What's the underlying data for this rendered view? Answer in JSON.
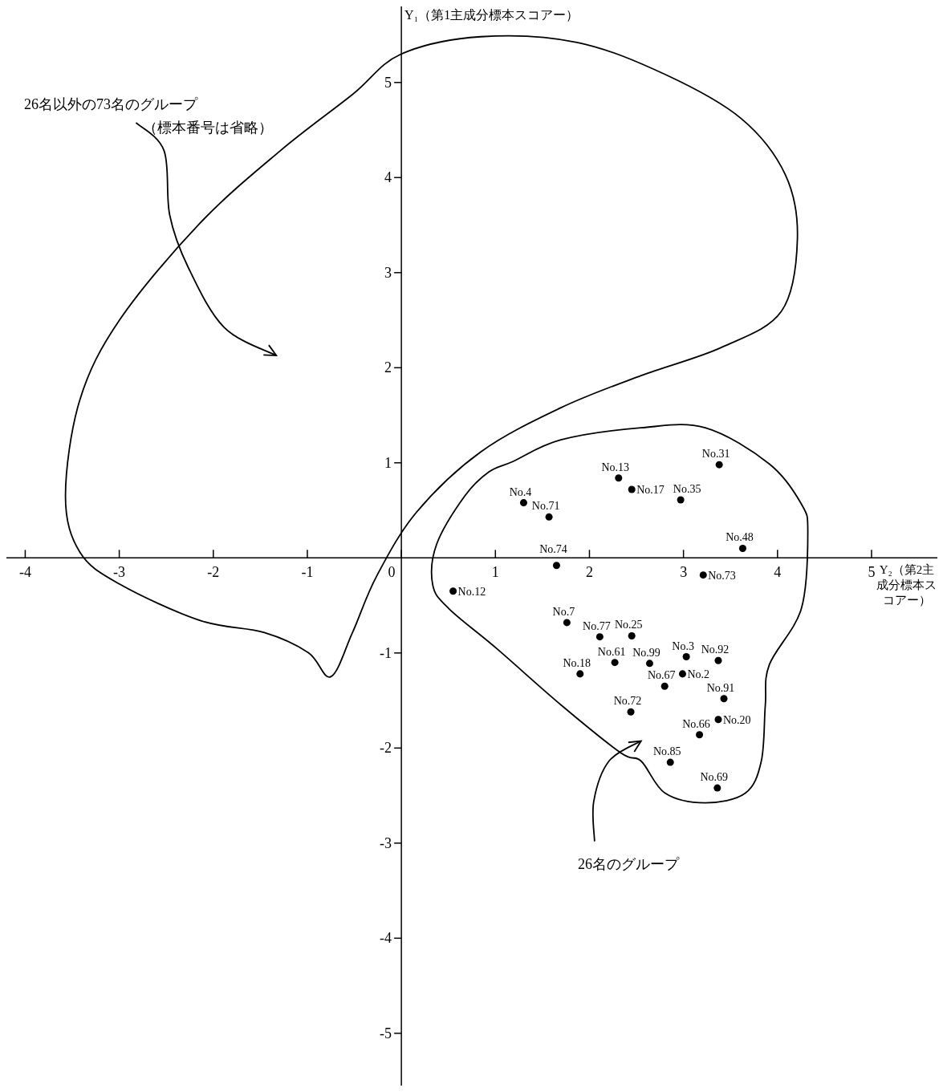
{
  "chart_data": {
    "type": "scatter",
    "xlabel": "Y₂（第2主成分標本スコアー）",
    "ylabel": "Y₁（第1主成分標本スコアー）",
    "annotations": [
      "26名以外の73名のグループ",
      "（標本番号は省略）",
      "26名のグループ"
    ],
    "x": [
      3.38,
      2.31,
      2.45,
      2.97,
      1.3,
      1.57,
      3.63,
      1.65,
      3.21,
      0.55,
      1.76,
      2.11,
      2.45,
      2.27,
      2.64,
      3.03,
      3.37,
      1.9,
      2.8,
      2.99,
      3.43,
      2.44,
      3.17,
      3.37,
      2.86,
      3.36
    ],
    "series": [
      {
        "color": "#000000",
        "values": [
          0.98,
          0.84,
          0.72,
          0.61,
          0.58,
          0.43,
          0.1,
          -0.08,
          -0.18,
          -0.35,
          -0.68,
          -0.83,
          -0.82,
          -1.1,
          -1.11,
          -1.04,
          -1.08,
          -1.22,
          -1.35,
          -1.22,
          -1.48,
          -1.62,
          -1.86,
          -1.7,
          -2.15,
          -2.42
        ],
        "value_labels": [
          "No.31",
          "No.13",
          "No.17",
          "No.35",
          "No.4",
          "No.71",
          "No.48",
          "No.74",
          "No.73",
          "No.12",
          "No.7",
          "No.77",
          "No.25",
          "No.61",
          "No.99",
          "No.3",
          "No.92",
          "No.18",
          "No.67",
          "No.2",
          "No.91",
          "No.72",
          "No.66",
          "No.20",
          "No.85",
          "No.69"
        ]
      }
    ],
    "xlim": [
      -4.2,
      5.7
    ],
    "ylim": [
      -5.55,
      5.8
    ],
    "xticks": [
      -4,
      -3,
      -2,
      -1,
      0,
      1,
      2,
      3,
      4,
      5
    ],
    "yticks": [
      -5,
      -4,
      -3,
      -2,
      -1,
      1,
      2,
      3,
      4,
      5
    ],
    "marker": "circle"
  }
}
